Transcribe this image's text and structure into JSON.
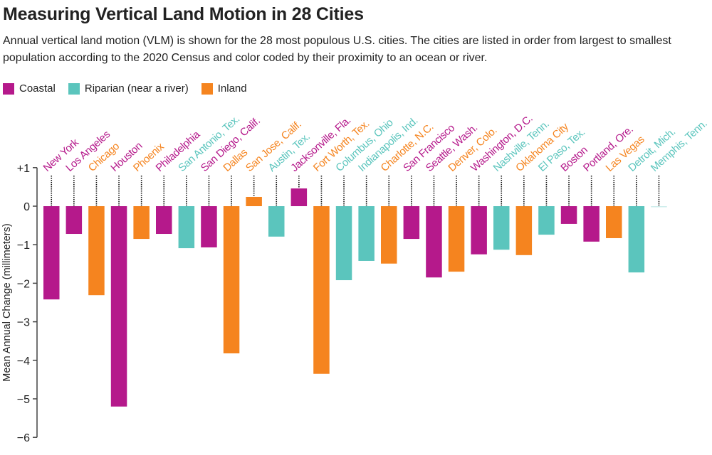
{
  "title": "Measuring Vertical Land Motion in 28 Cities",
  "subtitle": "Annual vertical land motion (VLM) is shown for the 28 most populous U.S. cities. The cities are listed in order from largest to smallest population according to the 2020 Census and color coded by their proximity to an ocean or river.",
  "colors": {
    "Coastal": "#b5198b",
    "Riparian": "#5bc5bd",
    "Inland": "#f5841f"
  },
  "legend": [
    {
      "key": "Coastal",
      "label": "Coastal"
    },
    {
      "key": "Riparian",
      "label": "Riparian (near a river)"
    },
    {
      "key": "Inland",
      "label": "Inland"
    }
  ],
  "chart_data": {
    "type": "bar",
    "title": "Measuring Vertical Land Motion in 28 Cities",
    "ylabel": "Mean Annual Change (millimeters)",
    "ylim": [
      -6,
      1
    ],
    "yticks": [
      "+1",
      "0",
      "−1",
      "−2",
      "−3",
      "−4",
      "−5",
      "−6"
    ],
    "ytick_values": [
      1,
      0,
      -1,
      -2,
      -3,
      -4,
      -5,
      -6
    ],
    "grid": false,
    "legend_position": "top-left",
    "categories": [
      "New York",
      "Los Angeles",
      "Chicago",
      "Houston",
      "Phoenix",
      "Philadelphia",
      "San Antonio, Tex.",
      "San Diego, Calif.",
      "Dallas",
      "San Jose, Calif.",
      "Austin, Tex.",
      "Jacksonville, Fla.",
      "Fort Worth, Tex.",
      "Columbus, Ohio",
      "Indianapolis, Ind.",
      "Charlotte, N.C.",
      "San Francisco",
      "Seattle, Wash.",
      "Denver, Colo.",
      "Washington, D.C.",
      "Nashville, Tenn.",
      "Oklahoma City",
      "El Paso, Tex.",
      "Boston",
      "Portland, Ore.",
      "Las Vegas",
      "Detroit, Mich.",
      "Memphis, Tenn."
    ],
    "groups": [
      "Coastal",
      "Coastal",
      "Inland",
      "Coastal",
      "Inland",
      "Coastal",
      "Riparian",
      "Coastal",
      "Inland",
      "Inland",
      "Riparian",
      "Coastal",
      "Inland",
      "Riparian",
      "Riparian",
      "Inland",
      "Coastal",
      "Coastal",
      "Inland",
      "Coastal",
      "Riparian",
      "Inland",
      "Riparian",
      "Coastal",
      "Coastal",
      "Inland",
      "Riparian",
      "Riparian"
    ],
    "values": [
      -2.42,
      -0.72,
      -2.31,
      -5.2,
      -0.85,
      -0.72,
      -1.09,
      -1.07,
      -3.82,
      0.24,
      -0.79,
      0.46,
      -4.35,
      -1.92,
      -1.42,
      -1.49,
      -0.85,
      -1.85,
      -1.7,
      -1.25,
      -1.13,
      -1.27,
      -0.74,
      -0.46,
      -0.92,
      -0.83,
      -1.72,
      -0.02
    ]
  }
}
